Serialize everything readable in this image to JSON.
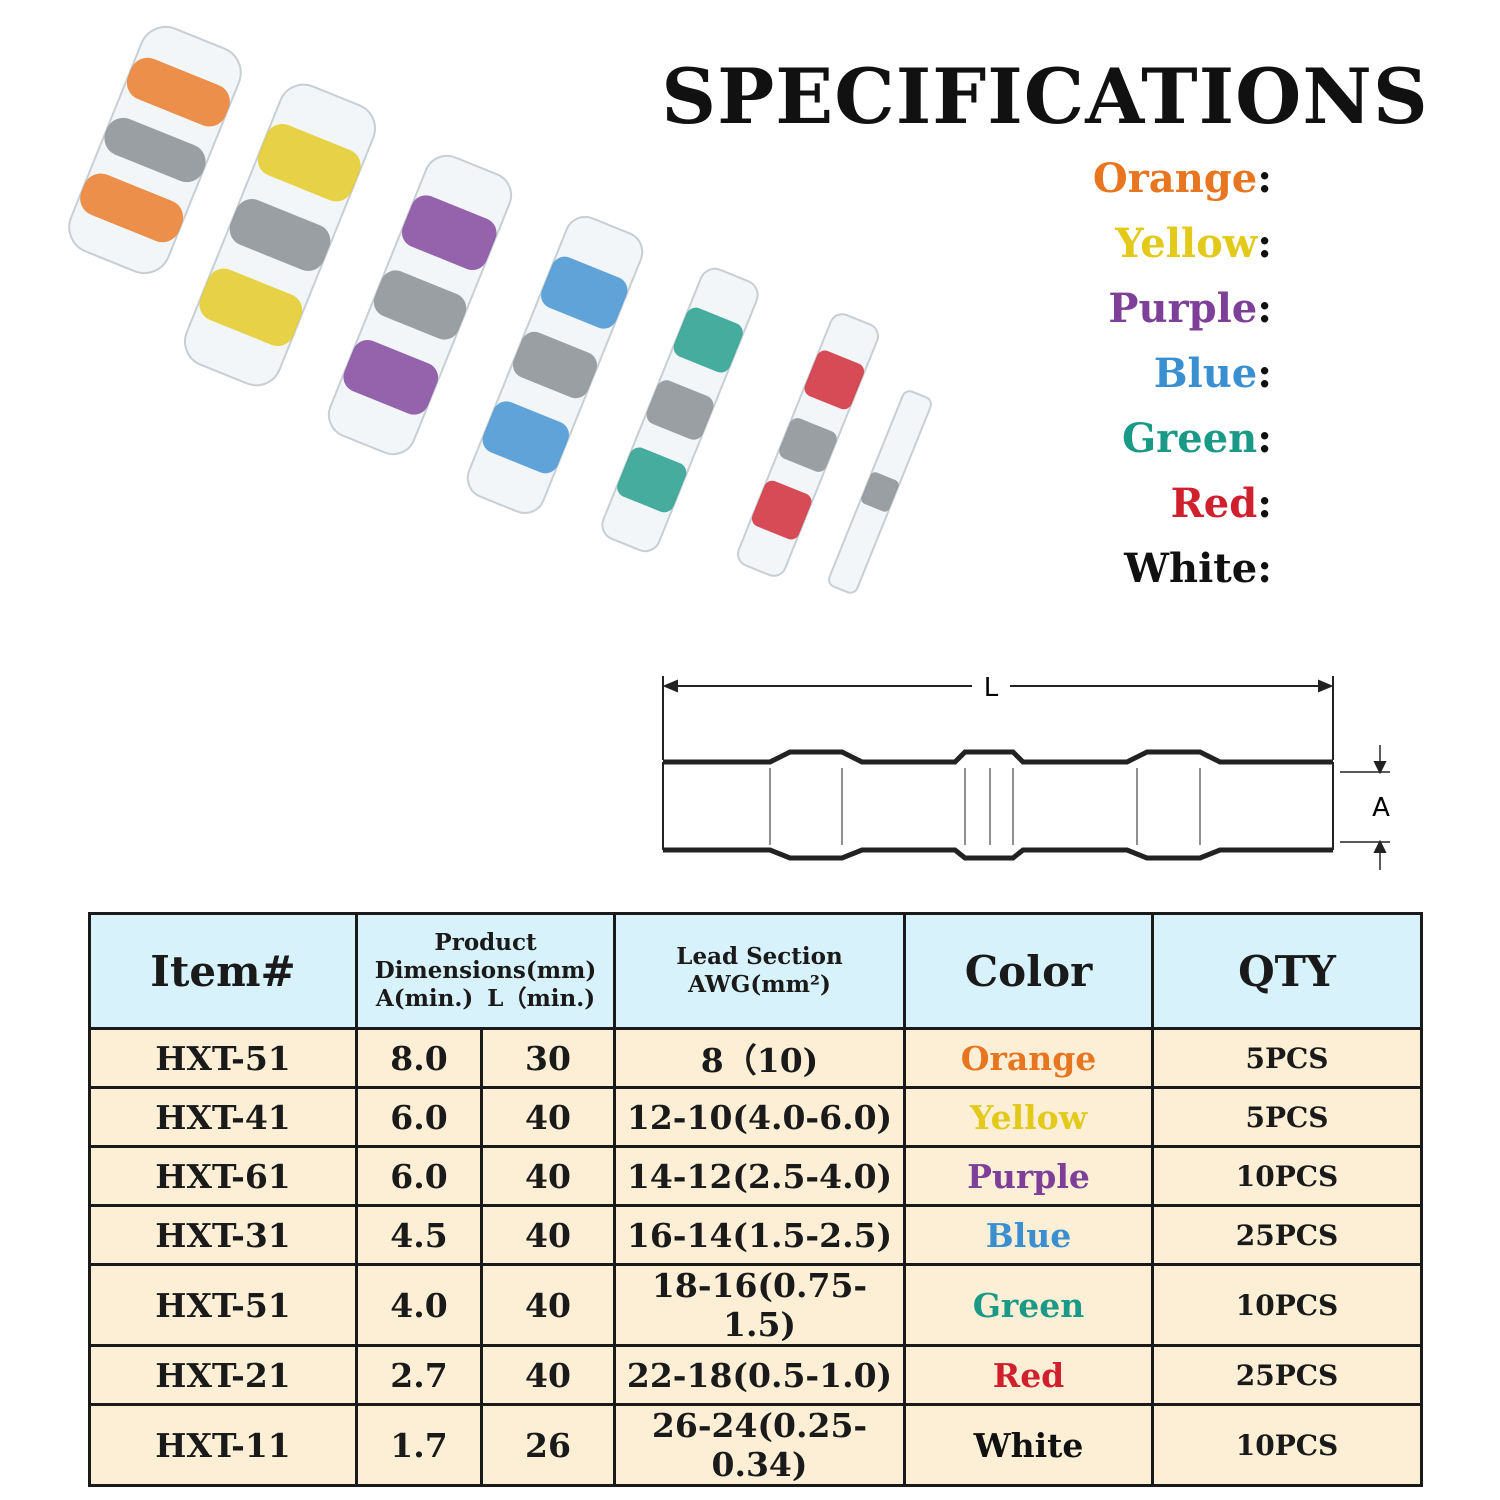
{
  "header": {
    "title": "SPECIFICATIONS"
  },
  "color_key": {
    "separator": ":",
    "items": [
      {
        "label": "Orange",
        "color": "#e8751f"
      },
      {
        "label": "Yellow",
        "color": "#e3c91a"
      },
      {
        "label": "Purple",
        "color": "#7d3f98"
      },
      {
        "label": "Blue",
        "color": "#3a8fd0"
      },
      {
        "label": "Green",
        "color": "#1a9a86"
      },
      {
        "label": "Red",
        "color": "#d0202e"
      },
      {
        "label": "White",
        "color": "#111111"
      }
    ]
  },
  "diagram": {
    "length_label": "L",
    "diameter_label": "A"
  },
  "table": {
    "columns": [
      {
        "label": "Item#"
      },
      {
        "label": "Product Dimensions(mm)",
        "sub": [
          "A(min.)",
          "L（min.)"
        ]
      },
      {
        "label": "Lead Section",
        "sub": [
          "AWG(mm²)"
        ]
      },
      {
        "label": "Color"
      },
      {
        "label": "QTY"
      }
    ],
    "rows": [
      [
        "HXT-51",
        "8.0",
        "30",
        "8（10)",
        "Orange",
        "5PCS"
      ],
      [
        "HXT-41",
        "6.0",
        "40",
        "12-10(4.0-6.0)",
        "Yellow",
        "5PCS"
      ],
      [
        "HXT-61",
        "6.0",
        "40",
        "14-12(2.5-4.0)",
        "Purple",
        "10PCS"
      ],
      [
        "HXT-31",
        "4.5",
        "40",
        "16-14(1.5-2.5)",
        "Blue",
        "25PCS"
      ],
      [
        "HXT-51",
        "4.0",
        "40",
        "18-16(0.75-1.5)",
        "Green",
        "10PCS"
      ],
      [
        "HXT-21",
        "2.7",
        "40",
        "22-18(0.5-1.0)",
        "Red",
        "25PCS"
      ],
      [
        "HXT-11",
        "1.7",
        "26",
        "26-24(0.25-0.34)",
        "White",
        "10PCS"
      ]
    ]
  }
}
